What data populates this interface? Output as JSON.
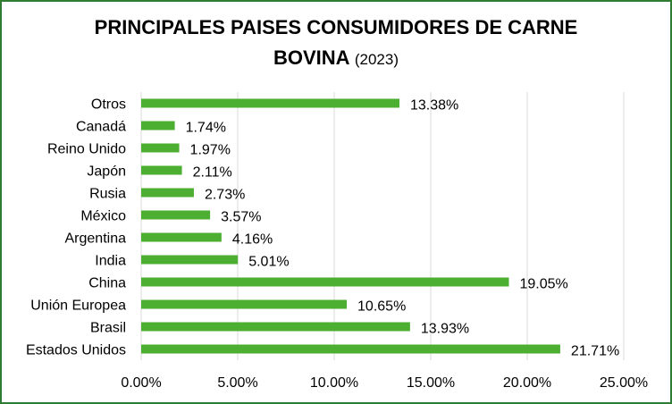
{
  "chart_data": {
    "type": "bar",
    "orientation": "horizontal",
    "title_line1": "PRINCIPALES PAISES CONSUMIDORES DE CARNE",
    "title_line2_bold": "BOVINA",
    "title_line2_suffix": "(2023)",
    "categories": [
      "Otros",
      "Canadá",
      "Reino Unido",
      "Japón",
      "Rusia",
      "México",
      "Argentina",
      "India",
      "China",
      "Unión Europea",
      "Brasil",
      "Estados Unidos"
    ],
    "values": [
      13.38,
      1.74,
      1.97,
      2.11,
      2.73,
      3.57,
      4.16,
      5.01,
      19.05,
      10.65,
      13.93,
      21.71
    ],
    "data_labels": [
      "13.38%",
      "1.74%",
      "1.97%",
      "2.11%",
      "2.73%",
      "3.57%",
      "4.16%",
      "5.01%",
      "19.05%",
      "10.65%",
      "13.93%",
      "21.71%"
    ],
    "x_ticks": [
      0,
      5,
      10,
      15,
      20,
      25
    ],
    "x_tick_labels": [
      "0.00%",
      "5.00%",
      "10.00%",
      "15.00%",
      "20.00%",
      "25.00%"
    ],
    "xlim": [
      0,
      25
    ],
    "xlabel": "",
    "ylabel": "",
    "grid": true,
    "legend": false,
    "bar_color": "#4caf32",
    "grid_color": "#d9d9d9",
    "border_color": "#2e7d32"
  }
}
